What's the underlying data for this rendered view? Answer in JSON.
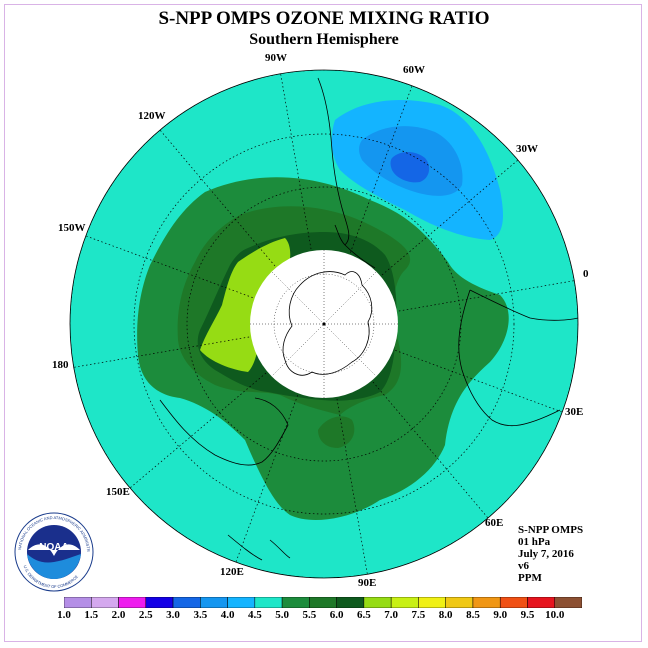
{
  "header": {
    "title": "S-NPP OMPS OZONE MIXING RATIO",
    "subtitle": "Southern Hemisphere"
  },
  "longitude_labels": [
    "90W",
    "60W",
    "30W",
    "0",
    "30E",
    "60E",
    "90E",
    "120E",
    "150E",
    "180",
    "150W",
    "120W"
  ],
  "info": {
    "instrument": "S-NPP OMPS",
    "level": "01 hPa",
    "date": "July 7, 2016",
    "version": "v6",
    "units": "PPM"
  },
  "legend": {
    "ticks": [
      "1.0",
      "1.5",
      "2.0",
      "2.5",
      "3.0",
      "3.5",
      "4.0",
      "4.5",
      "5.0",
      "5.5",
      "6.0",
      "6.5",
      "7.0",
      "7.5",
      "8.0",
      "8.5",
      "9.0",
      "9.5",
      "10.0"
    ],
    "colors": [
      "#b48ee6",
      "#d4a8ee",
      "#ee1cee",
      "#1400e6",
      "#1466e6",
      "#1496f0",
      "#14b4ff",
      "#1ee6c8",
      "#1c8c3c",
      "#1e7828",
      "#0e5a1e",
      "#96dc14",
      "#c8f014",
      "#f0f014",
      "#f0c814",
      "#f09614",
      "#f05014",
      "#e6141e",
      "#8c5032"
    ]
  },
  "logo": {
    "text": "NOAA",
    "ring_text": "NATIONAL OCEANIC AND ATMOSPHERIC ADMINISTRATION",
    "lower_text": "U.S. DEPARTMENT OF COMMERCE"
  }
}
